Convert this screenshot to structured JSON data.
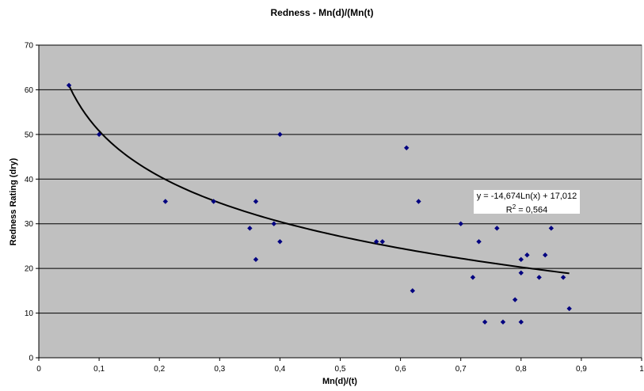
{
  "chart_data": {
    "type": "scatter",
    "title": "Redness  - Mn(d)/(Mn(t)",
    "xlabel": "Mn(d)/(t)",
    "ylabel": "Redness Rating (dry)",
    "xlim": [
      0,
      1
    ],
    "ylim": [
      0,
      70
    ],
    "x_ticks": [
      "0",
      "0,1",
      "0,2",
      "0,3",
      "0,4",
      "0,5",
      "0,6",
      "0,7",
      "0,8",
      "0,9",
      "1"
    ],
    "y_ticks": [
      "0",
      "10",
      "20",
      "30",
      "40",
      "50",
      "60",
      "70"
    ],
    "grid": "horizontal",
    "plot_background": "#c0c0c0",
    "marker_color": "#000080",
    "points": [
      {
        "x": 0.05,
        "y": 61
      },
      {
        "x": 0.1,
        "y": 50
      },
      {
        "x": 0.21,
        "y": 35
      },
      {
        "x": 0.29,
        "y": 35
      },
      {
        "x": 0.35,
        "y": 29
      },
      {
        "x": 0.36,
        "y": 35
      },
      {
        "x": 0.36,
        "y": 22
      },
      {
        "x": 0.39,
        "y": 30
      },
      {
        "x": 0.4,
        "y": 50
      },
      {
        "x": 0.4,
        "y": 26
      },
      {
        "x": 0.56,
        "y": 26
      },
      {
        "x": 0.57,
        "y": 26
      },
      {
        "x": 0.61,
        "y": 47
      },
      {
        "x": 0.62,
        "y": 15
      },
      {
        "x": 0.63,
        "y": 35
      },
      {
        "x": 0.7,
        "y": 30
      },
      {
        "x": 0.72,
        "y": 18
      },
      {
        "x": 0.73,
        "y": 26
      },
      {
        "x": 0.74,
        "y": 8
      },
      {
        "x": 0.76,
        "y": 29
      },
      {
        "x": 0.77,
        "y": 8
      },
      {
        "x": 0.79,
        "y": 13
      },
      {
        "x": 0.8,
        "y": 22
      },
      {
        "x": 0.8,
        "y": 19
      },
      {
        "x": 0.8,
        "y": 8
      },
      {
        "x": 0.81,
        "y": 23
      },
      {
        "x": 0.83,
        "y": 18
      },
      {
        "x": 0.84,
        "y": 23
      },
      {
        "x": 0.85,
        "y": 29
      },
      {
        "x": 0.87,
        "y": 18
      },
      {
        "x": 0.88,
        "y": 11
      }
    ],
    "trendline": {
      "type": "logarithmic",
      "a": -14.674,
      "b": 17.012,
      "x_range": [
        0.05,
        0.88
      ],
      "equation": "y = -14,674Ln(x) + 17,012",
      "r2_prefix": "R",
      "r2_sup": "2",
      "r2_value": " = 0,564"
    }
  }
}
